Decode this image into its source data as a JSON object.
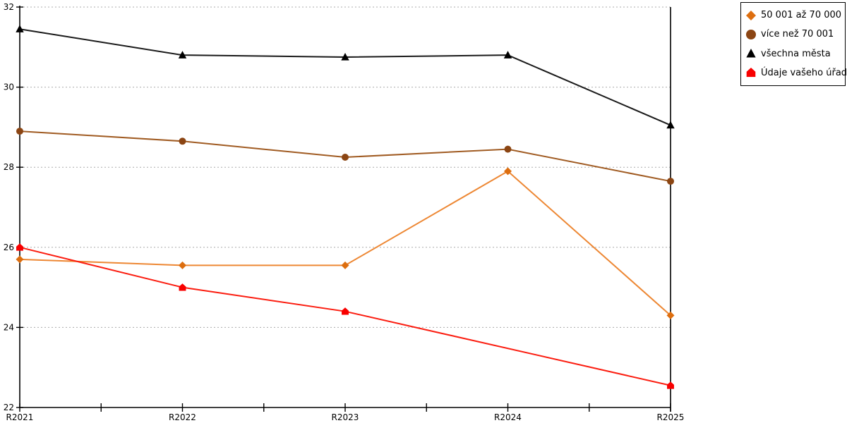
{
  "chart_data": {
    "type": "line",
    "title": "",
    "xlabel": "",
    "ylabel": "",
    "categories": [
      "R2021",
      "R2022",
      "R2023",
      "R2024",
      "R2025"
    ],
    "y_axis": {
      "min": 22,
      "max": 32,
      "step": 2,
      "tick_labels": [
        "22",
        "24",
        "26",
        "28",
        "30",
        "32"
      ]
    },
    "grid": "horizontal dashed",
    "legend_position": "top-right outside",
    "series": [
      {
        "name": "50 001 až 70 000",
        "marker": "diamond",
        "line_color": "#ED8733",
        "marker_color": "#DD6E0F",
        "values": [
          25.7,
          25.55,
          25.55,
          27.9,
          24.3
        ]
      },
      {
        "name": "více než 70 001",
        "marker": "circle",
        "line_color": "#A05B22",
        "marker_color": "#8B4513",
        "values": [
          28.9,
          28.65,
          28.25,
          28.45,
          27.65
        ]
      },
      {
        "name": "všechna města",
        "marker": "triangle",
        "line_color": "#1A1A1A",
        "marker_color": "#000000",
        "values": [
          31.45,
          30.8,
          30.75,
          30.8,
          29.05
        ]
      },
      {
        "name": "Údaje vašeho úřadu",
        "marker": "pentagon",
        "line_color": "#FB1D10",
        "marker_color": "#F80000",
        "values": [
          26.0,
          25.0,
          24.4,
          null,
          22.55
        ]
      }
    ]
  },
  "colors": {
    "axis": "#000000",
    "gridline": "#ABABAB",
    "background": "#FFFFFF"
  }
}
